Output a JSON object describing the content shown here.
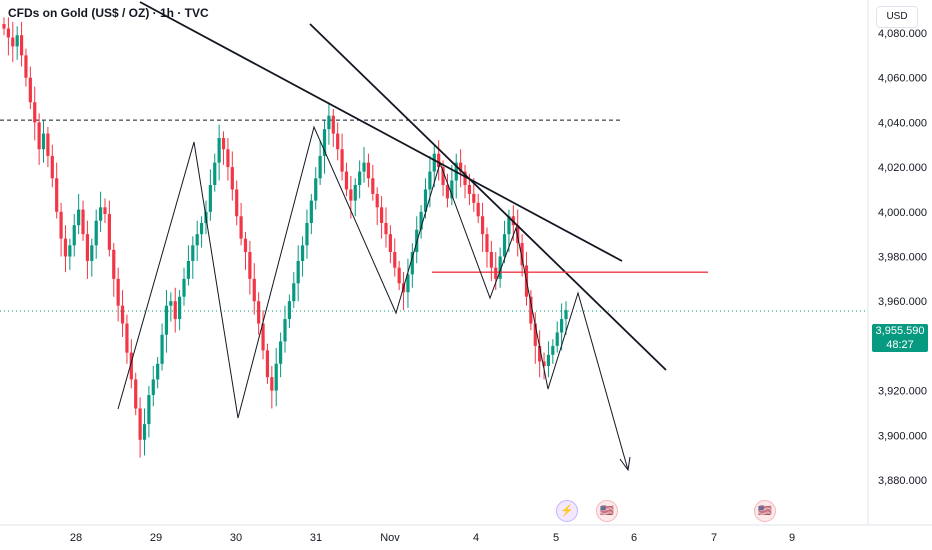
{
  "title": "CFDs on Gold (US$ / OZ) · 1h · TVC",
  "currency_button": "USD",
  "last_price": "3,955.590",
  "countdown": "48:27",
  "colors": {
    "up": "#089981",
    "down": "#f23645",
    "line": "#131722",
    "resistance": "#f23645",
    "pricetag": "#089981"
  },
  "chart_data": {
    "type": "candlestick",
    "y_axis": {
      "ticks": [
        "4,080.000",
        "4,060.000",
        "4,040.000",
        "4,020.000",
        "4,000.000",
        "3,980.000",
        "3,960.000",
        "3,940.000",
        "3,920.000",
        "3,900.000",
        "3,880.000"
      ],
      "ylim": [
        3874,
        4088
      ]
    },
    "x_axis": {
      "ticks": [
        "28",
        "29",
        "30",
        "31",
        "Nov",
        "4",
        "5",
        "6",
        "7",
        "9"
      ]
    },
    "last_price": 3955.59,
    "dashed_level": 4041,
    "resistance_level": 3973,
    "candles_close_path": [
      4082,
      4078,
      4074,
      4079,
      4070,
      4060,
      4049,
      4040,
      4028,
      4035,
      4025,
      4015,
      4000,
      3988,
      3980,
      3985,
      3994,
      4001,
      3990,
      3978,
      3985,
      3996,
      4002,
      3999,
      3983,
      3970,
      3958,
      3950,
      3937,
      3925,
      3912,
      3898,
      3905,
      3918,
      3925,
      3932,
      3945,
      3958,
      3960,
      3952,
      3962,
      3970,
      3978,
      3985,
      3990,
      3995,
      4000,
      4012,
      4022,
      4033,
      4028,
      4020,
      4010,
      3998,
      3988,
      3982,
      3970,
      3960,
      3950,
      3938,
      3926,
      3920,
      3932,
      3942,
      3952,
      3960,
      3968,
      3978,
      3985,
      3995,
      4005,
      4015,
      4025,
      4037,
      4043,
      4035,
      4028,
      4018,
      4010,
      4005,
      4012,
      4018,
      4022,
      4015,
      4008,
      4002,
      3995,
      3990,
      3982,
      3975,
      3968,
      3964,
      3972,
      3982,
      3992,
      4000,
      4010,
      4018,
      4026,
      4020,
      4012,
      4006,
      4014,
      4022,
      4018,
      4012,
      4008,
      4004,
      3998,
      3990,
      3982,
      3975,
      3970,
      3980,
      3990,
      3998,
      3994,
      3986,
      3976,
      3962,
      3950,
      3940,
      3933,
      3931,
      3936,
      3940,
      3946,
      3952,
      3956
    ],
    "trend_lines": [
      {
        "from": [
          0,
          4092
        ],
        "to": [
          80,
          3984
        ]
      },
      {
        "from": [
          40,
          4090
        ],
        "to": [
          86,
          3937
        ]
      }
    ],
    "zigzag": [
      [
        14,
        3924
      ],
      [
        24,
        4035
      ],
      [
        31,
        3920
      ],
      [
        40,
        4043
      ],
      [
        48,
        3963
      ],
      [
        56,
        4026
      ],
      [
        64,
        3970
      ],
      [
        70,
        3995
      ],
      [
        76,
        3932
      ],
      [
        80,
        3972
      ],
      [
        86,
        3896
      ]
    ]
  },
  "events": [
    "⚡",
    "🇺🇸",
    "🇺🇸"
  ]
}
